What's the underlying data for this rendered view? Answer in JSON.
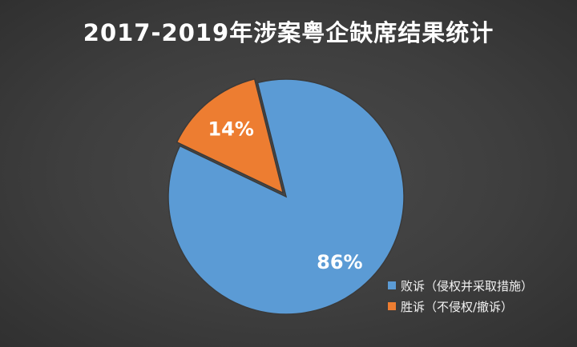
{
  "chart_data": {
    "type": "pie",
    "title": "2017-2019年涉案粤企缺席结果统计",
    "categories": [
      "败诉（侵权并采取措施）",
      "胜诉（不侵权/撤诉）"
    ],
    "values": [
      86,
      14
    ],
    "labels": [
      "86%",
      "14%"
    ],
    "colors": [
      "#5b9bd5",
      "#ed7d31"
    ],
    "background": "#404040",
    "legend_position": "bottom-right"
  }
}
